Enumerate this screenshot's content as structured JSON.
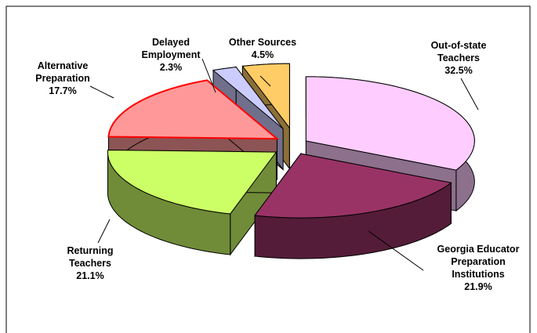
{
  "chart_data": {
    "type": "pie3d",
    "categories": [
      "Out-of-state Teachers",
      "Georgia Educator Preparation Institutions",
      "Returning Teachers",
      "Alternative Preparation",
      "Delayed Employment",
      "Other Sources"
    ],
    "values": [
      32.5,
      21.9,
      21.1,
      17.7,
      2.3,
      4.5
    ],
    "value_labels": [
      "32.5%",
      "21.9%",
      "21.1%",
      "17.7%",
      "2.3%",
      "4.5%"
    ],
    "colors": [
      "#ffccff",
      "#993366",
      "#ccff66",
      "#ff9999",
      "#ccccff",
      "#ffcc66"
    ]
  }
}
